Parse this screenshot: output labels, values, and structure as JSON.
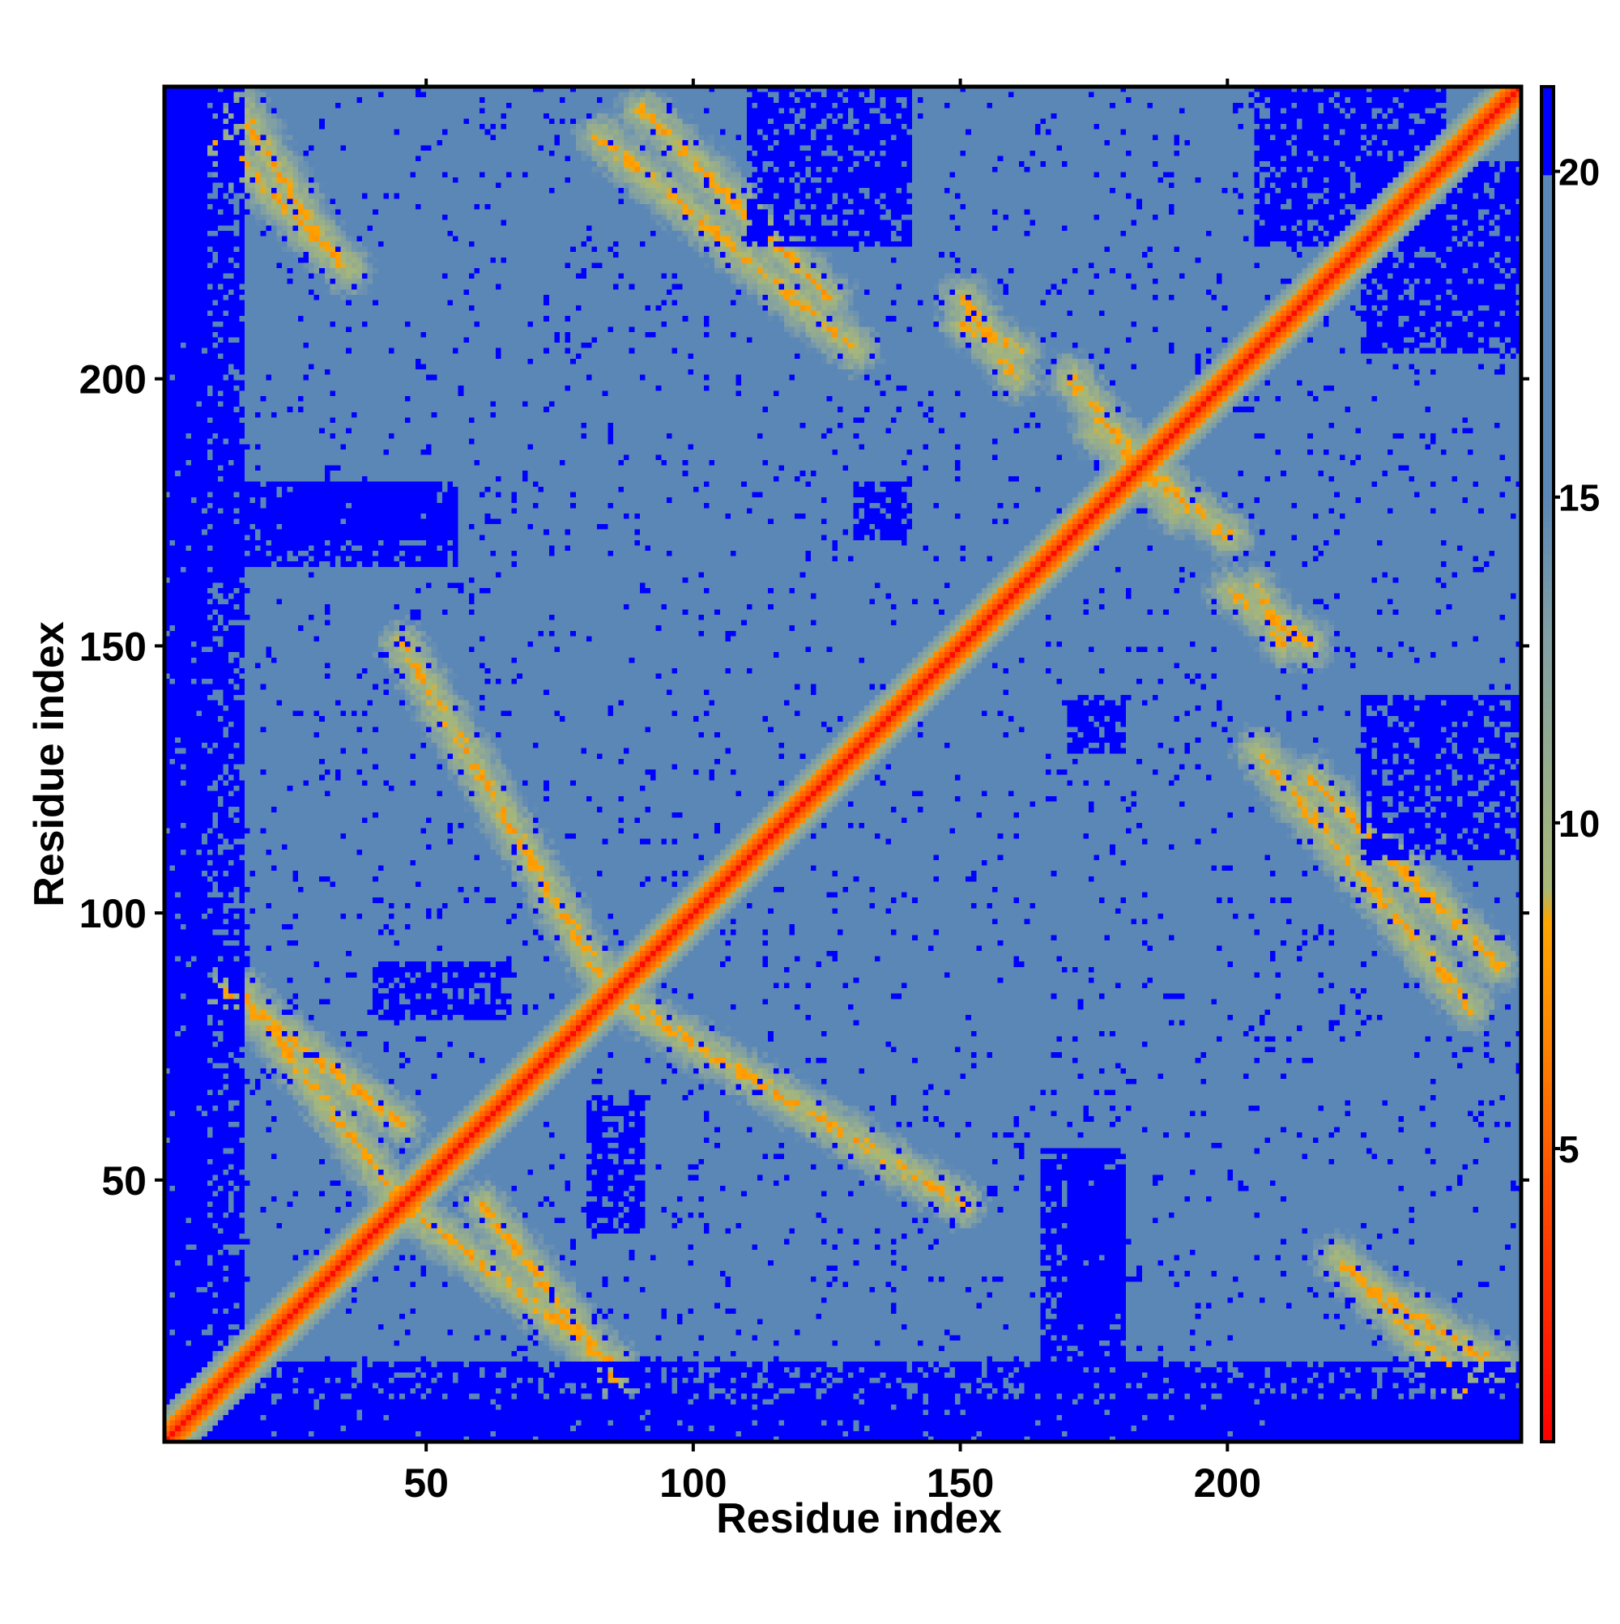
{
  "chart_data": {
    "type": "heatmap",
    "title": "",
    "xlabel": "Residue index",
    "ylabel": "Residue index",
    "xlim": [
      1,
      254
    ],
    "ylim": [
      1,
      254
    ],
    "x_ticks": [
      50,
      100,
      150,
      200
    ],
    "y_ticks": [
      50,
      100,
      150,
      200
    ],
    "colorbar": {
      "ticks": [
        5,
        10,
        15,
        20
      ],
      "range": [
        0.5,
        21.3
      ],
      "color_stops": [
        {
          "value": 0.5,
          "color": "#ff0000"
        },
        {
          "value": 4.0,
          "color": "#ff4500"
        },
        {
          "value": 7.0,
          "color": "#ff8c00"
        },
        {
          "value": 8.5,
          "color": "#ffa500"
        },
        {
          "value": 9.0,
          "color": "#a8b878"
        },
        {
          "value": 13.0,
          "color": "#7f9ea6"
        },
        {
          "value": 15.0,
          "color": "#5b87b7"
        },
        {
          "value": 19.9,
          "color": "#5b87b7"
        },
        {
          "value": 20.0,
          "color": "#0000ff"
        },
        {
          "value": 21.3,
          "color": "#0000ff"
        }
      ]
    },
    "values_description": "Symmetric residue-residue distance matrix; diagonal near 0-5, off-diagonal contacts bands, far regions saturated above 20",
    "contact_bands": [
      {
        "from": [
          10,
          245
        ],
        "to": [
          35,
          220
        ]
      },
      {
        "from": [
          82,
          245
        ],
        "to": [
          130,
          205
        ]
      },
      {
        "from": [
          88,
          82
        ],
        "to": [
          150,
          45
        ]
      },
      {
        "from": [
          45,
          45
        ],
        "to": [
          85,
          15
        ]
      },
      {
        "from": [
          12,
          85
        ],
        "to": [
          45,
          60
        ]
      },
      {
        "from": [
          215,
          125
        ],
        "to": [
          250,
          90
        ]
      },
      {
        "from": [
          225,
          30
        ],
        "to": [
          250,
          15
        ]
      },
      {
        "from": [
          150,
          210
        ],
        "to": [
          160,
          205
        ]
      },
      {
        "from": [
          175,
          190
        ],
        "to": [
          200,
          170
        ]
      },
      {
        "from": [
          200,
          160
        ],
        "to": [
          215,
          150
        ]
      }
    ],
    "far_regions": [
      {
        "x": [
          1,
          15
        ],
        "y": [
          1,
          254
        ]
      },
      {
        "x": [
          1,
          254
        ],
        "y": [
          1,
          8
        ]
      },
      {
        "x": [
          20,
          55
        ],
        "y": [
          170,
          180
        ]
      },
      {
        "x": [
          40,
          65
        ],
        "y": [
          80,
          90
        ]
      },
      {
        "x": [
          165,
          180
        ],
        "y": [
          10,
          55
        ]
      },
      {
        "x": [
          210,
          254
        ],
        "y": [
          1,
          8
        ]
      },
      {
        "x": [
          225,
          254
        ],
        "y": [
          205,
          240
        ]
      },
      {
        "x": [
          110,
          140
        ],
        "y": [
          225,
          254
        ]
      },
      {
        "x": [
          170,
          180
        ],
        "y": [
          130,
          140
        ]
      }
    ]
  }
}
